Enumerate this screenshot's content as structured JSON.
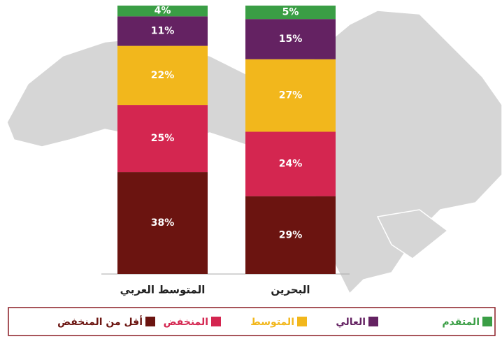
{
  "chart_data": {
    "type": "stacked_bar",
    "categories": [
      "المتوسط العربي",
      "البحرين"
    ],
    "ylim": [
      0,
      100
    ],
    "series": [
      {
        "name": "أقل من المنخفض",
        "color": "#6b1410",
        "values": [
          38,
          29
        ],
        "value_labels": [
          "38%",
          "29%"
        ]
      },
      {
        "name": "المنخفض",
        "color": "#d42650",
        "values": [
          25,
          24
        ],
        "value_labels": [
          "25%",
          "24%"
        ]
      },
      {
        "name": "المتوسط",
        "color": "#f2b71c",
        "values": [
          22,
          27
        ],
        "value_labels": [
          "22%",
          "27%"
        ]
      },
      {
        "name": "العالي",
        "color": "#642262",
        "values": [
          11,
          15
        ],
        "value_labels": [
          "11%",
          "15%"
        ]
      },
      {
        "name": "المتقدم",
        "color": "#3a9e45",
        "values": [
          4,
          5
        ],
        "value_labels": [
          "4%",
          "5%"
        ]
      }
    ]
  }
}
